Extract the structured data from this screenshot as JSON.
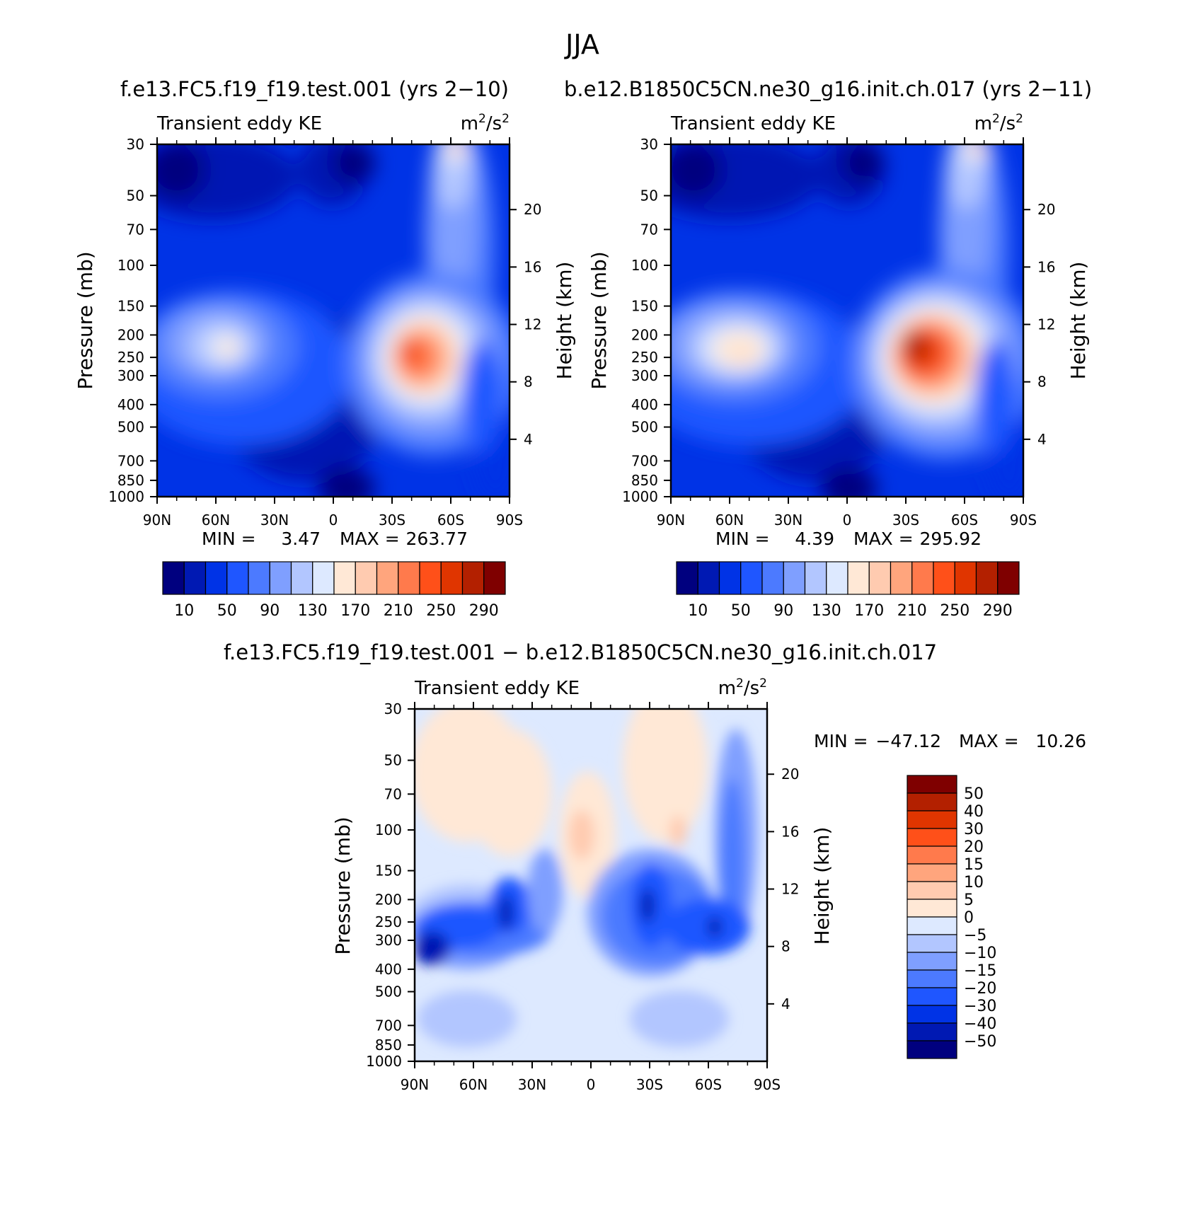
{
  "main_title": "JJA",
  "top_title_left": "f.e13.FC5.f19_f19.test.001 (yrs 2−10)",
  "top_title_right": "b.e12.B1850C5CN.ne30_g16.init.ch.017 (yrs 2−11)",
  "diff_title": "f.e13.FC5.f19_f19.test.001 − b.e12.B1850C5CN.ne30_g16.init.ch.017",
  "colors": {
    "seq": [
      "#00007f",
      "#0019b3",
      "#0033e6",
      "#1f56ff",
      "#4c7aff",
      "#7f9fff",
      "#b2c6ff",
      "#dde9ff",
      "#ffe8d6",
      "#ffcbb0",
      "#ffa57d",
      "#ff7a4c",
      "#ff5019",
      "#e03500",
      "#b32000",
      "#7f0000"
    ],
    "diff": [
      "#00007f",
      "#0019b3",
      "#0033e6",
      "#1f56ff",
      "#4c7aff",
      "#7f9fff",
      "#b2c6ff",
      "#dde9ff",
      "#ffe8d6",
      "#ffcbb0",
      "#ffa57d",
      "#ff7a4c",
      "#ff5019",
      "#e03500",
      "#b32000",
      "#7f0000"
    ]
  },
  "chart_data": [
    {
      "type": "contour",
      "title": "Transient eddy KE",
      "units_base": "m",
      "units_exp1": "2",
      "units_mid": "/s",
      "units_exp2": "2",
      "ylabel": "Pressure (mb)",
      "y2label": "Height (km)",
      "x_ticks": [
        "90N",
        "60N",
        "30N",
        "0",
        "30S",
        "60S",
        "90S"
      ],
      "y_ticks": [
        "30",
        "50",
        "70",
        "100",
        "150",
        "200",
        "250",
        "300",
        "400",
        "500",
        "700",
        "850",
        "1000"
      ],
      "y2_ticks": [
        "20",
        "16",
        "12",
        "8",
        "4"
      ],
      "min_label": "MIN =",
      "min_value": "3.47",
      "max_label": "MAX =",
      "max_value": "263.77",
      "levels": [
        "10",
        "50",
        "90",
        "130",
        "170",
        "210",
        "250",
        "290"
      ],
      "features": [
        {
          "lat": -52,
          "p": 260,
          "value": 263.77
        },
        {
          "lat": 55,
          "p": 250,
          "value": 170
        },
        {
          "lat": 0,
          "p": 300,
          "value": 20
        }
      ]
    },
    {
      "type": "contour",
      "title": "Transient eddy KE",
      "units_base": "m",
      "units_exp1": "2",
      "units_mid": "/s",
      "units_exp2": "2",
      "ylabel": "Pressure (mb)",
      "y2label": "Height (km)",
      "x_ticks": [
        "90N",
        "60N",
        "30N",
        "0",
        "30S",
        "60S",
        "90S"
      ],
      "y_ticks": [
        "30",
        "50",
        "70",
        "100",
        "150",
        "200",
        "250",
        "300",
        "400",
        "500",
        "700",
        "850",
        "1000"
      ],
      "y2_ticks": [
        "20",
        "16",
        "12",
        "8",
        "4"
      ],
      "min_label": "MIN =",
      "min_value": "4.39",
      "max_label": "MAX =",
      "max_value": "295.92",
      "levels": [
        "10",
        "50",
        "90",
        "130",
        "170",
        "210",
        "250",
        "290"
      ],
      "features": [
        {
          "lat": -48,
          "p": 250,
          "value": 295.92
        },
        {
          "lat": 55,
          "p": 250,
          "value": 190
        },
        {
          "lat": 0,
          "p": 300,
          "value": 20
        }
      ]
    },
    {
      "type": "contour",
      "title": "Transient eddy KE",
      "units_base": "m",
      "units_exp1": "2",
      "units_mid": "/s",
      "units_exp2": "2",
      "ylabel": "Pressure (mb)",
      "y2label": "Height (km)",
      "x_ticks": [
        "90N",
        "60N",
        "30N",
        "0",
        "30S",
        "60S",
        "90S"
      ],
      "y_ticks": [
        "30",
        "50",
        "70",
        "100",
        "150",
        "200",
        "250",
        "300",
        "400",
        "500",
        "700",
        "850",
        "1000"
      ],
      "y2_ticks": [
        "20",
        "16",
        "12",
        "8",
        "4"
      ],
      "min_label": "MIN =",
      "min_value": "−47.12",
      "max_label": "MAX =",
      "max_value": "10.26",
      "levels": [
        "50",
        "40",
        "30",
        "20",
        "15",
        "10",
        "5",
        "0",
        "−5",
        "−10",
        "−15",
        "−20",
        "−30",
        "−40",
        "−50"
      ],
      "features": [
        {
          "lat": 40,
          "p": 220,
          "value": -47.12
        },
        {
          "lat": -32,
          "p": 220,
          "value": -45
        },
        {
          "lat": 5,
          "p": 100,
          "value": 10.26
        }
      ]
    }
  ]
}
